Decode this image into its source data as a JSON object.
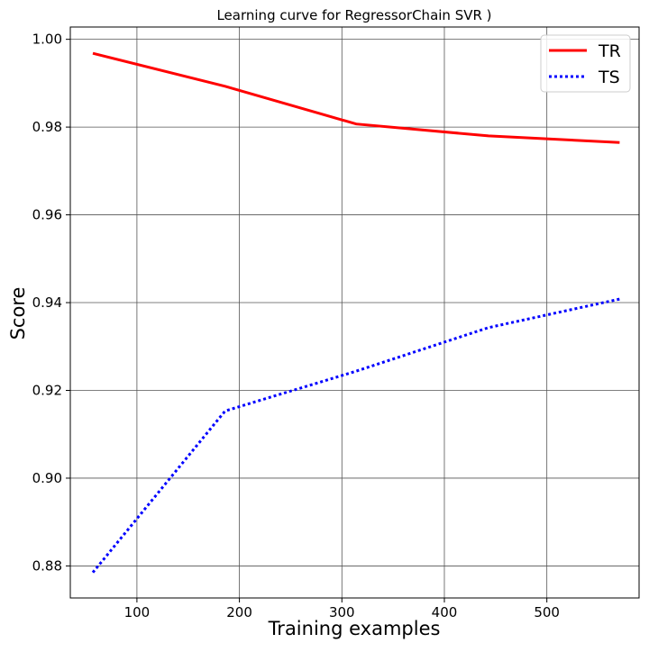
{
  "chart_data": {
    "type": "line",
    "title": "Learning curve for RegressorChain SVR  )",
    "xlabel": "Training examples",
    "ylabel": "Score",
    "xlim": [
      35,
      590
    ],
    "ylim": [
      0.8727,
      1.0028
    ],
    "x_ticks": [
      100,
      200,
      300,
      400,
      500
    ],
    "y_ticks": [
      0.88,
      0.9,
      0.92,
      0.94,
      0.96,
      0.98,
      1.0
    ],
    "x_tick_labels": [
      "100",
      "200",
      "300",
      "400",
      "500"
    ],
    "y_tick_labels": [
      "0.88",
      "0.90",
      "0.92",
      "0.94",
      "0.96",
      "0.98",
      "1.00"
    ],
    "grid": true,
    "legend_position": "top-right",
    "series": [
      {
        "name": "TR",
        "color": "#ff0000",
        "line_style": "solid",
        "x": [
          57,
          186,
          314,
          443,
          571
        ],
        "y": [
          0.9968,
          0.9893,
          0.9807,
          0.978,
          0.9765
        ]
      },
      {
        "name": "TS",
        "color": "#0000ff",
        "line_style": "dotted",
        "x": [
          57,
          186,
          314,
          443,
          571
        ],
        "y": [
          0.8785,
          0.9153,
          0.9244,
          0.9343,
          0.9408
        ]
      }
    ]
  }
}
